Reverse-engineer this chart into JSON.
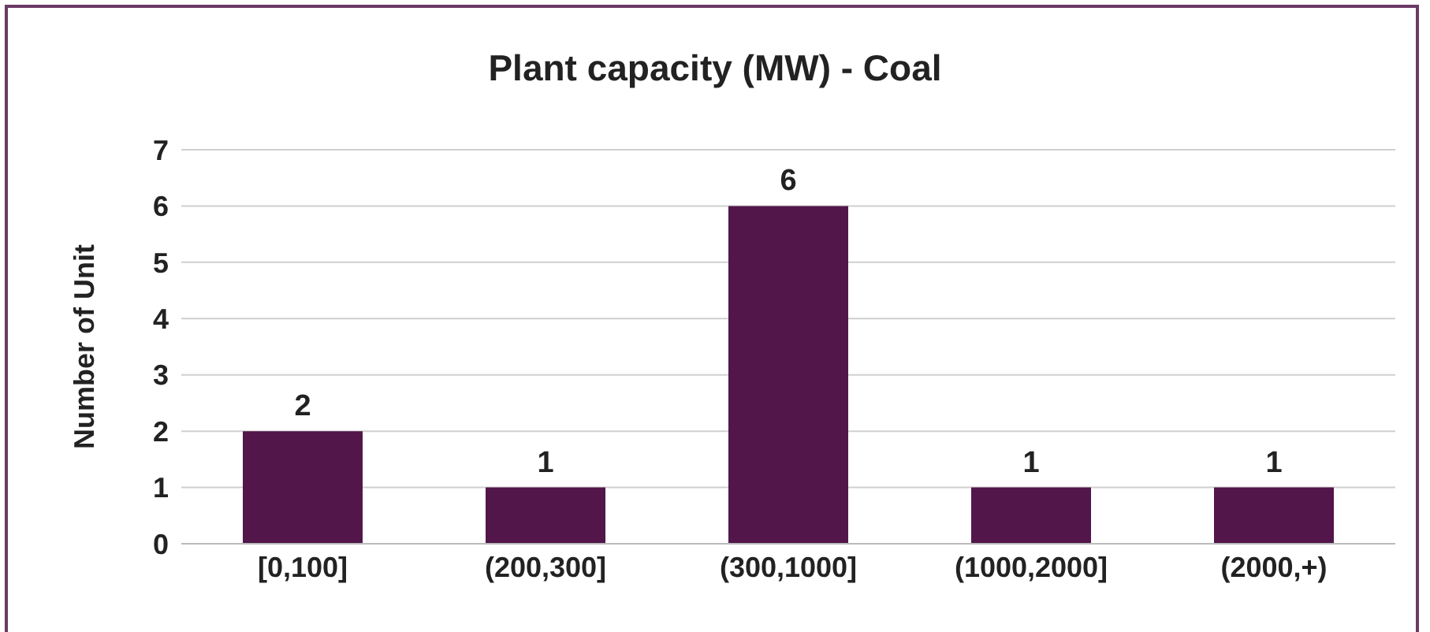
{
  "chart_data": {
    "type": "bar",
    "title": "Plant capacity (MW) - Coal",
    "ylabel": "Number of Unit",
    "categories": [
      "[0,100]",
      "(200,300]",
      "(300,1000]",
      "(1000,2000]",
      "(2000,+)"
    ],
    "values": [
      2,
      1,
      6,
      1,
      1
    ],
    "color": "#52164a",
    "ylim": [
      0,
      7
    ],
    "yticks": [
      0,
      1,
      2,
      3,
      4,
      5,
      6,
      7
    ],
    "grid": "y",
    "data_labels": true
  }
}
